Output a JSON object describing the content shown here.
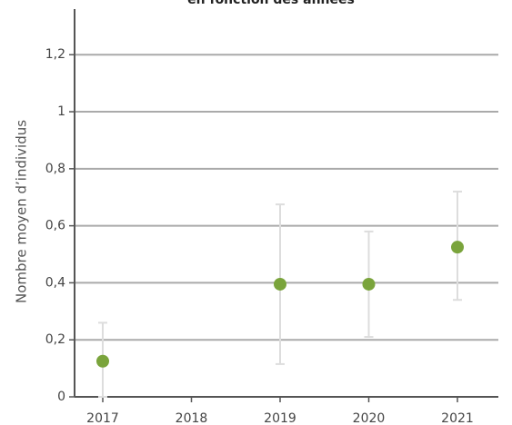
{
  "chart_data": {
    "type": "scatter",
    "title": "en fonction des années",
    "y_label": "Nombre moyen d’individus",
    "categories": [
      "2017",
      "2018",
      "2019",
      "2020",
      "2021"
    ],
    "series": [
      {
        "color": "#7aa43c",
        "values": [
          0.125,
          null,
          0.395,
          0.395,
          0.525
        ],
        "upper": [
          0.26,
          null,
          0.675,
          0.58,
          0.72
        ],
        "lower": [
          0,
          null,
          0.115,
          0.21,
          0.34
        ]
      }
    ],
    "ylim": [
      0,
      1.36
    ],
    "yticks": [
      {
        "value": 0,
        "label": "0"
      },
      {
        "value": 0.2,
        "label": "0,2"
      },
      {
        "value": 0.4,
        "label": "0,4"
      },
      {
        "value": 0.6,
        "label": "0,6"
      },
      {
        "value": 0.8,
        "label": "0,8"
      },
      {
        "value": 1,
        "label": "1"
      },
      {
        "value": 1.2,
        "label": "1,2"
      }
    ],
    "grid": true
  }
}
